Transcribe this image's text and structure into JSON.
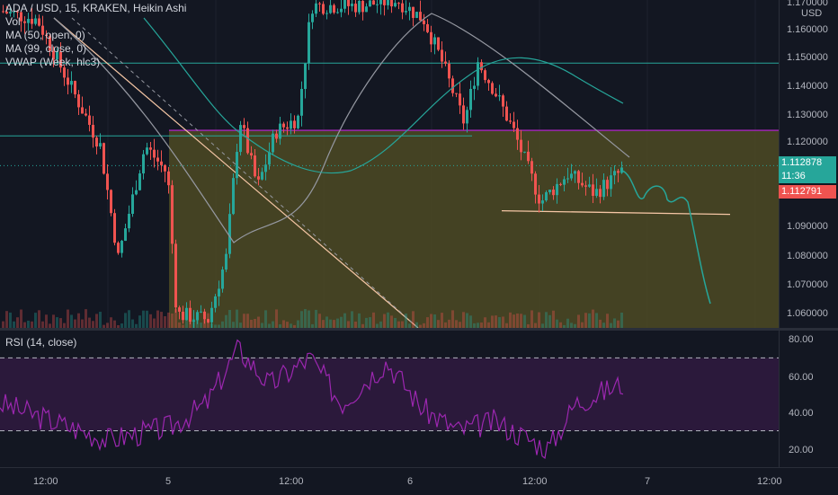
{
  "legend": {
    "title": "ADA / USD, 15, KRAKEN, Heikin Ashi",
    "vol": "Vol",
    "ma50": "MA (50, open, 0)",
    "ma99": "MA (99, close, 0)",
    "vwap": "VWAP (Week, hlc3)"
  },
  "rsi_legend": "RSI (14, close)",
  "price_axis": {
    "ticks": [
      "1.170000",
      "1.160000",
      "1.150000",
      "1.140000",
      "1.130000",
      "1.120000",
      "1.110000",
      "1.100000",
      "1.090000",
      "1.080000",
      "1.070000",
      "1.060000"
    ],
    "currency": "USD",
    "current_price": "1.112878",
    "countdown": "11:36",
    "last_price": "1.112791"
  },
  "rsi_axis": {
    "ticks": [
      "80.00",
      "60.00",
      "40.00",
      "20.00"
    ]
  },
  "time_axis": {
    "ticks": [
      "12:00",
      "5",
      "12:00",
      "6",
      "12:00",
      "7",
      "12:00"
    ]
  },
  "colors": {
    "background": "#131722",
    "up": "#26a69a",
    "down": "#ef5350",
    "ma50": "#26a69a",
    "ma99": "#9598a1",
    "rsi": "#9c27b0",
    "range_box": "#4d4a23"
  },
  "chart_data": {
    "type": "candlestick",
    "symbol": "ADA / USD",
    "interval": "15",
    "ylim": [
      1.055,
      1.172
    ],
    "rsi_ylim": [
      10,
      85
    ],
    "rsi_bands": [
      70,
      30
    ],
    "levels": [
      1.1495,
      1.1235,
      1.1129,
      1.0968
    ],
    "range_box": {
      "top": 1.1255,
      "bottom": 1.055
    }
  }
}
